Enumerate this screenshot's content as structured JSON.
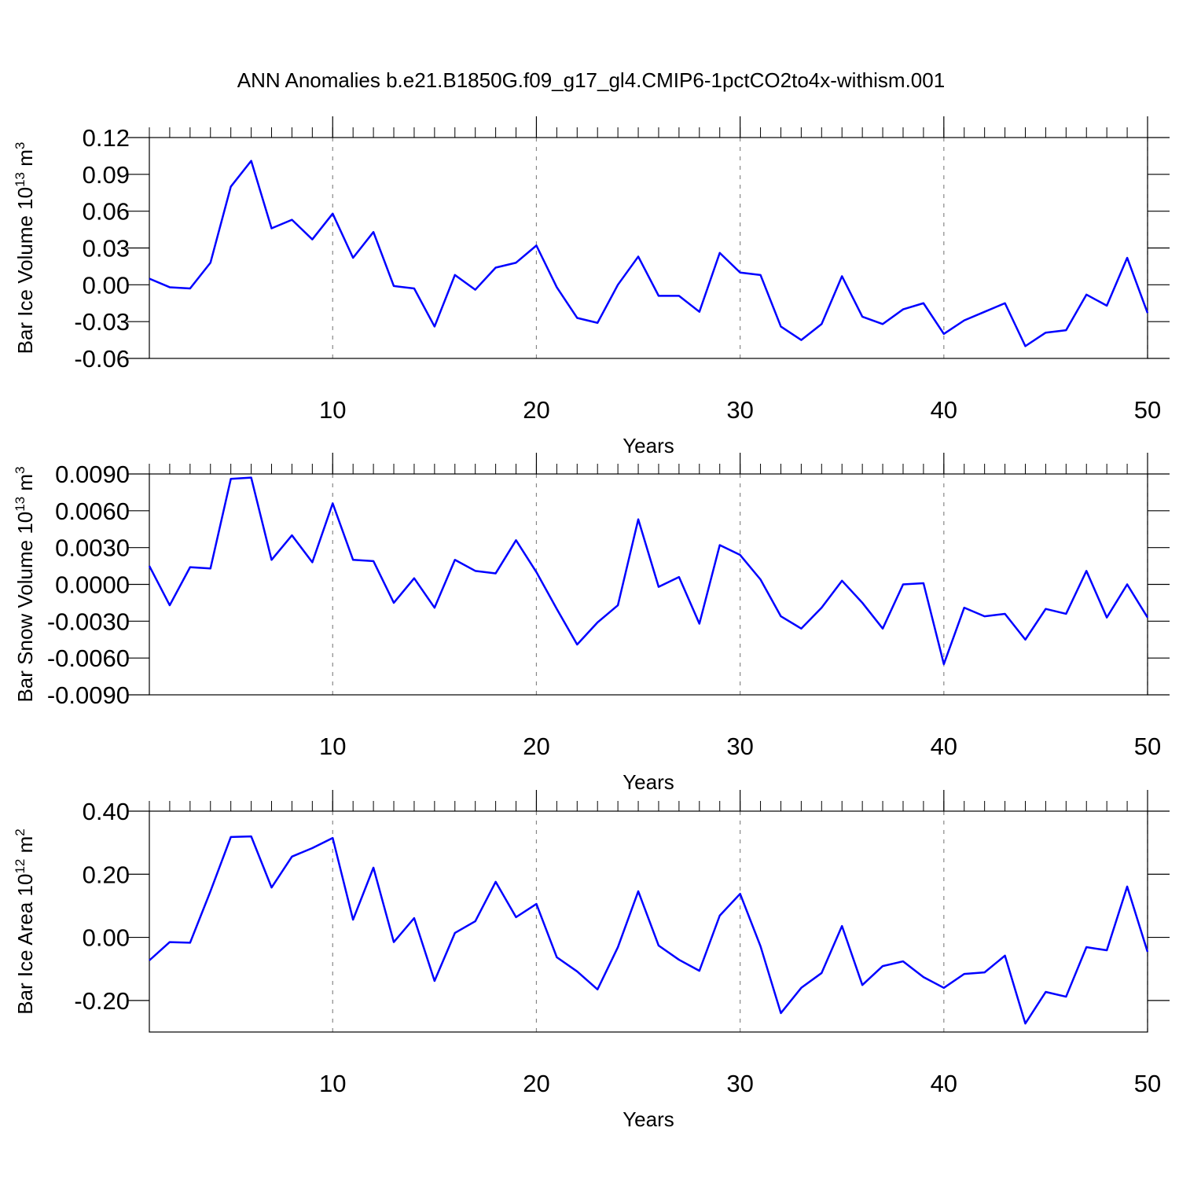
{
  "title": "ANN Anomalies b.e21.B1850G.f09_g17_gl4.CMIP6-1pctCO2to4x-withism.001",
  "chart_data": [
    {
      "type": "line",
      "ylabel": [
        "Bar Ice Volume 10",
        "13",
        " m",
        "3"
      ],
      "xlabel": "Years",
      "x": [
        1,
        2,
        3,
        4,
        5,
        6,
        7,
        8,
        9,
        10,
        11,
        12,
        13,
        14,
        15,
        16,
        17,
        18,
        19,
        20,
        21,
        22,
        23,
        24,
        25,
        26,
        27,
        28,
        29,
        30,
        31,
        32,
        33,
        34,
        35,
        36,
        37,
        38,
        39,
        40,
        41,
        42,
        43,
        44,
        45,
        46,
        47,
        48,
        49,
        50
      ],
      "series": [
        {
          "color": "#0000ff",
          "values": [
            0.005,
            -0.002,
            -0.003,
            0.018,
            0.08,
            0.101,
            0.046,
            0.053,
            0.037,
            0.058,
            0.022,
            0.043,
            -0.001,
            -0.003,
            -0.034,
            0.008,
            -0.004,
            0.014,
            0.018,
            0.032,
            -0.002,
            -0.027,
            -0.031,
            0.0,
            0.023,
            -0.009,
            -0.009,
            -0.022,
            0.026,
            0.01,
            0.008,
            -0.034,
            -0.045,
            -0.032,
            0.007,
            -0.026,
            -0.032,
            -0.02,
            -0.015,
            -0.04,
            -0.029,
            -0.022,
            -0.015,
            -0.05,
            -0.039,
            -0.037,
            -0.008,
            -0.017,
            0.022,
            -0.023
          ]
        }
      ],
      "xlim": [
        1,
        50
      ],
      "xticks": [
        10,
        20,
        30,
        40,
        50
      ],
      "ylim": [
        -0.06,
        0.12
      ],
      "yticks": [
        -0.06,
        -0.03,
        {
          "value": 0,
          "label": "0.00"
        },
        0.03,
        0.06,
        0.09,
        0.12
      ],
      "grid": "x"
    },
    {
      "type": "line",
      "ylabel": [
        "Bar Snow Volume 10",
        "13",
        " m",
        "3"
      ],
      "xlabel": "Years",
      "x": [
        1,
        2,
        3,
        4,
        5,
        6,
        7,
        8,
        9,
        10,
        11,
        12,
        13,
        14,
        15,
        16,
        17,
        18,
        19,
        20,
        21,
        22,
        23,
        24,
        25,
        26,
        27,
        28,
        29,
        30,
        31,
        32,
        33,
        34,
        35,
        36,
        37,
        38,
        39,
        40,
        41,
        42,
        43,
        44,
        45,
        46,
        47,
        48,
        49,
        50
      ],
      "series": [
        {
          "color": "#0000ff",
          "values": [
            0.0015,
            -0.0017,
            0.0014,
            0.0013,
            0.0086,
            0.0087,
            0.002,
            0.004,
            0.0018,
            0.0066,
            0.002,
            0.0019,
            -0.0015,
            0.0005,
            -0.0019,
            0.002,
            0.0011,
            0.0009,
            0.0036,
            0.001,
            -0.002,
            -0.0049,
            -0.0031,
            -0.0017,
            0.0053,
            -0.0002,
            0.0006,
            -0.0032,
            0.0032,
            0.0024,
            0.0004,
            -0.0026,
            -0.0036,
            -0.0019,
            0.0003,
            -0.0015,
            -0.0036,
            0.0,
            0.0001,
            -0.0065,
            -0.0019,
            -0.0026,
            -0.0024,
            -0.0045,
            -0.002,
            -0.0024,
            0.0011,
            -0.0027,
            0.0,
            -0.0027
          ]
        }
      ],
      "xlim": [
        1,
        50
      ],
      "xticks": [
        10,
        20,
        30,
        40,
        50
      ],
      "ylim": [
        -0.009,
        0.009
      ],
      "yticks": [
        {
          "value": -0.009,
          "label": "-0.0090"
        },
        {
          "value": -0.006,
          "label": "-0.0060"
        },
        {
          "value": -0.003,
          "label": "-0.0030"
        },
        {
          "value": 0,
          "label": "0.0000"
        },
        {
          "value": 0.003,
          "label": "0.0030"
        },
        {
          "value": 0.006,
          "label": "0.0060"
        },
        {
          "value": 0.009,
          "label": "0.0090"
        }
      ],
      "grid": "x"
    },
    {
      "type": "line",
      "ylabel": [
        "Bar Ice Area 10",
        "12",
        " m",
        "2"
      ],
      "xlabel": "Years",
      "x": [
        1,
        2,
        3,
        4,
        5,
        6,
        7,
        8,
        9,
        10,
        11,
        12,
        13,
        14,
        15,
        16,
        17,
        18,
        19,
        20,
        21,
        22,
        23,
        24,
        25,
        26,
        27,
        28,
        29,
        30,
        31,
        32,
        33,
        34,
        35,
        36,
        37,
        38,
        39,
        40,
        41,
        42,
        43,
        44,
        45,
        46,
        47,
        48,
        49,
        50
      ],
      "series": [
        {
          "color": "#0000ff",
          "values": [
            -0.073,
            -0.015,
            -0.017,
            0.146,
            0.318,
            0.32,
            0.158,
            0.256,
            0.283,
            0.315,
            0.056,
            0.221,
            -0.015,
            0.061,
            -0.138,
            0.014,
            0.051,
            0.176,
            0.064,
            0.106,
            -0.063,
            -0.108,
            -0.165,
            -0.031,
            0.146,
            -0.026,
            -0.071,
            -0.106,
            0.069,
            0.138,
            -0.028,
            -0.24,
            -0.16,
            -0.113,
            0.036,
            -0.151,
            -0.091,
            -0.076,
            -0.126,
            -0.16,
            -0.116,
            -0.111,
            -0.058,
            -0.273,
            -0.173,
            -0.188,
            -0.031,
            -0.041,
            0.161,
            -0.046
          ]
        }
      ],
      "xlim": [
        1,
        50
      ],
      "xticks": [
        10,
        20,
        30,
        40,
        50
      ],
      "ylim": [
        -0.3,
        0.4
      ],
      "yticks": [
        {
          "value": -0.2,
          "label": "-0.20"
        },
        {
          "value": 0,
          "label": "0.00"
        },
        {
          "value": 0.2,
          "label": "0.20"
        },
        {
          "value": 0.4,
          "label": "0.40"
        }
      ],
      "grid": "x"
    }
  ]
}
